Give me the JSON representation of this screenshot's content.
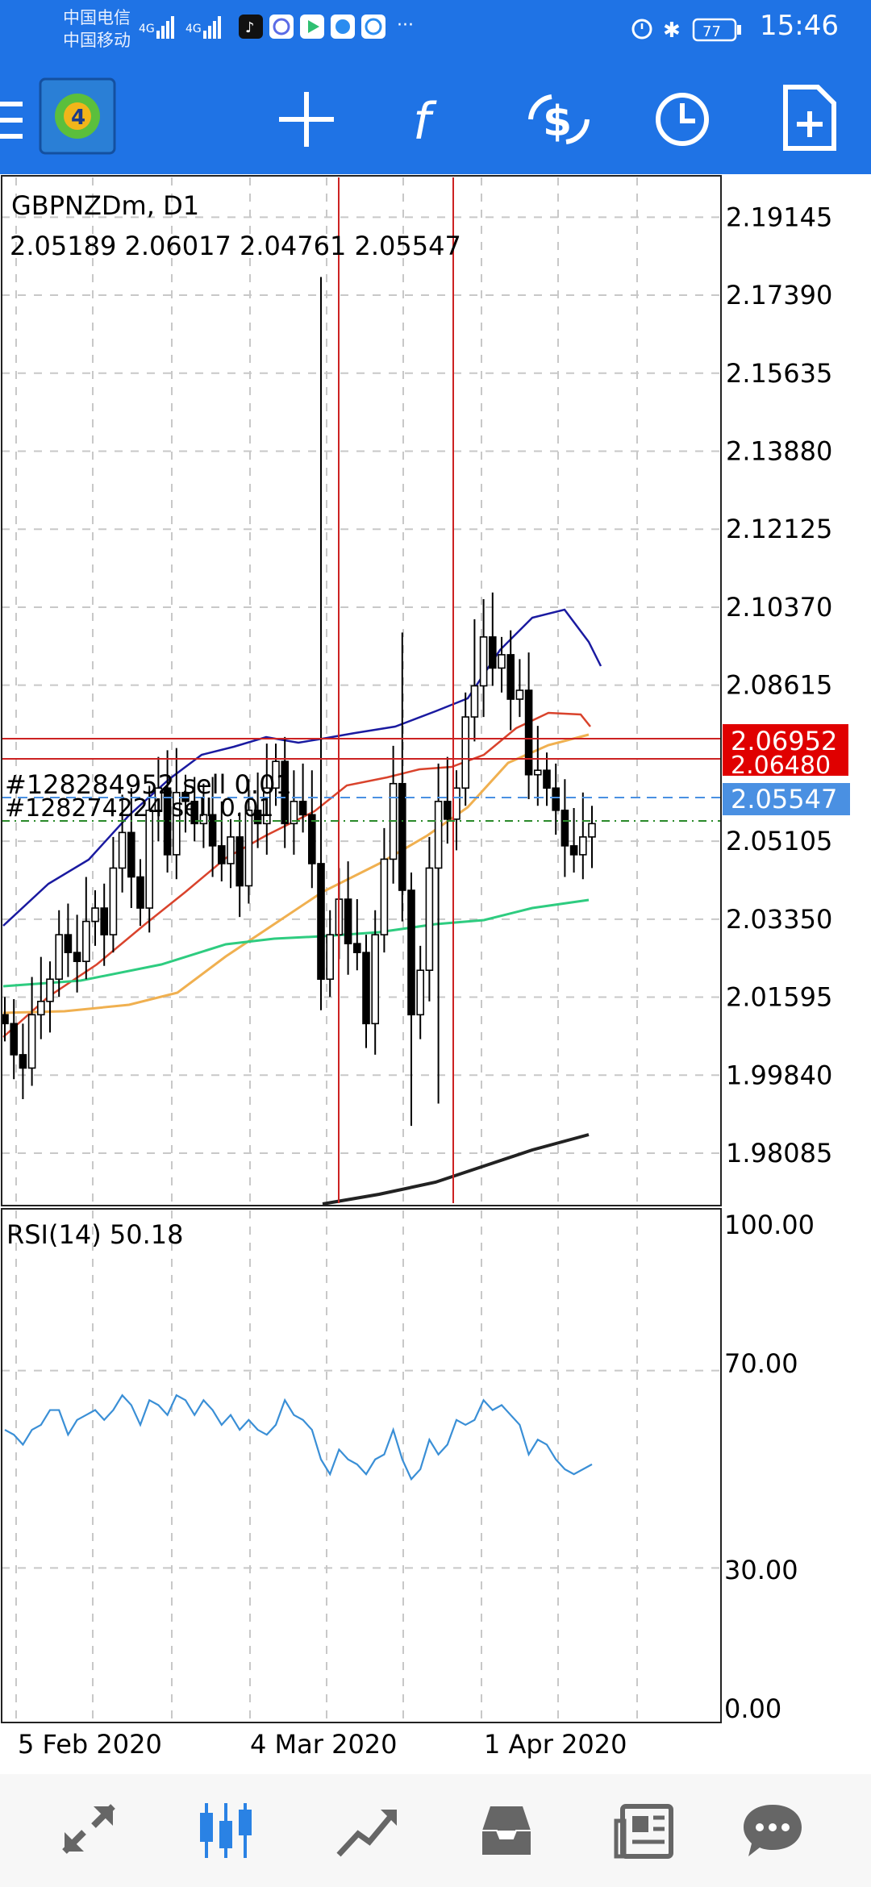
{
  "status_bar": {
    "carrier1": "中国电信",
    "carrier2": "中国移动",
    "battery": "77",
    "time": "15:46"
  },
  "toolbar": {
    "icons": [
      "menu-icon",
      "app-logo",
      "crosshair-icon",
      "indicators-icon",
      "trade-icon",
      "timeframe-icon",
      "new-order-icon"
    ]
  },
  "chart": {
    "symbol": "GBPNZDm, D1",
    "ohlc": "2.05189 2.06017 2.04761 2.05547",
    "price_labels": [
      "2.19145",
      "2.17390",
      "2.15635",
      "2.13880",
      "2.12125",
      "2.10370",
      "2.08615",
      "2.05105",
      "2.03350",
      "2.01595",
      "1.99840",
      "1.98085"
    ],
    "order1_label": "#128284952 sell 0.01",
    "order2_label": "#128274224 sell 0.01",
    "tag_high": "2.06952",
    "tag_mid": "2.06480",
    "tag_current": "2.05547",
    "rsi_label": "RSI(14) 50.18",
    "rsi_levels": [
      "100.00",
      "70.00",
      "30.00",
      "0.00"
    ],
    "date_labels": [
      "5 Feb 2020",
      "4 Mar 2020",
      "1 Apr 2020"
    ],
    "colors": {
      "up_bar": "#000000",
      "down_bar": "#000000",
      "ma_blue": "#1a1aa0",
      "ma_red": "#d9432c",
      "ma_orange": "#f0b050",
      "ma_green": "#2ecc80",
      "ma_black": "#222222",
      "rsi": "#3a8fd6",
      "sell_line": "#cc2222",
      "current_tag": "#4a90e2"
    }
  },
  "chart_data": {
    "type": "candlestick",
    "title": "GBPNZDm, D1",
    "ylim": [
      1.9696,
      2.2004
    ],
    "series": [
      {
        "name": "RSI(14)",
        "values": [
          58,
          57,
          55,
          58,
          59,
          62,
          62,
          57,
          60,
          61,
          62,
          60,
          62,
          65,
          63,
          59,
          64,
          63,
          61,
          65,
          64,
          61,
          64,
          62,
          59,
          61,
          58,
          60,
          58,
          57,
          59,
          64,
          61,
          60,
          58,
          52,
          49,
          54,
          52,
          51,
          49,
          52,
          53,
          58,
          52,
          48,
          50,
          56,
          53,
          55,
          60,
          59,
          60,
          64,
          62,
          63,
          61,
          59,
          53,
          56,
          55,
          52,
          50,
          49,
          50,
          51
        ]
      }
    ]
  }
}
